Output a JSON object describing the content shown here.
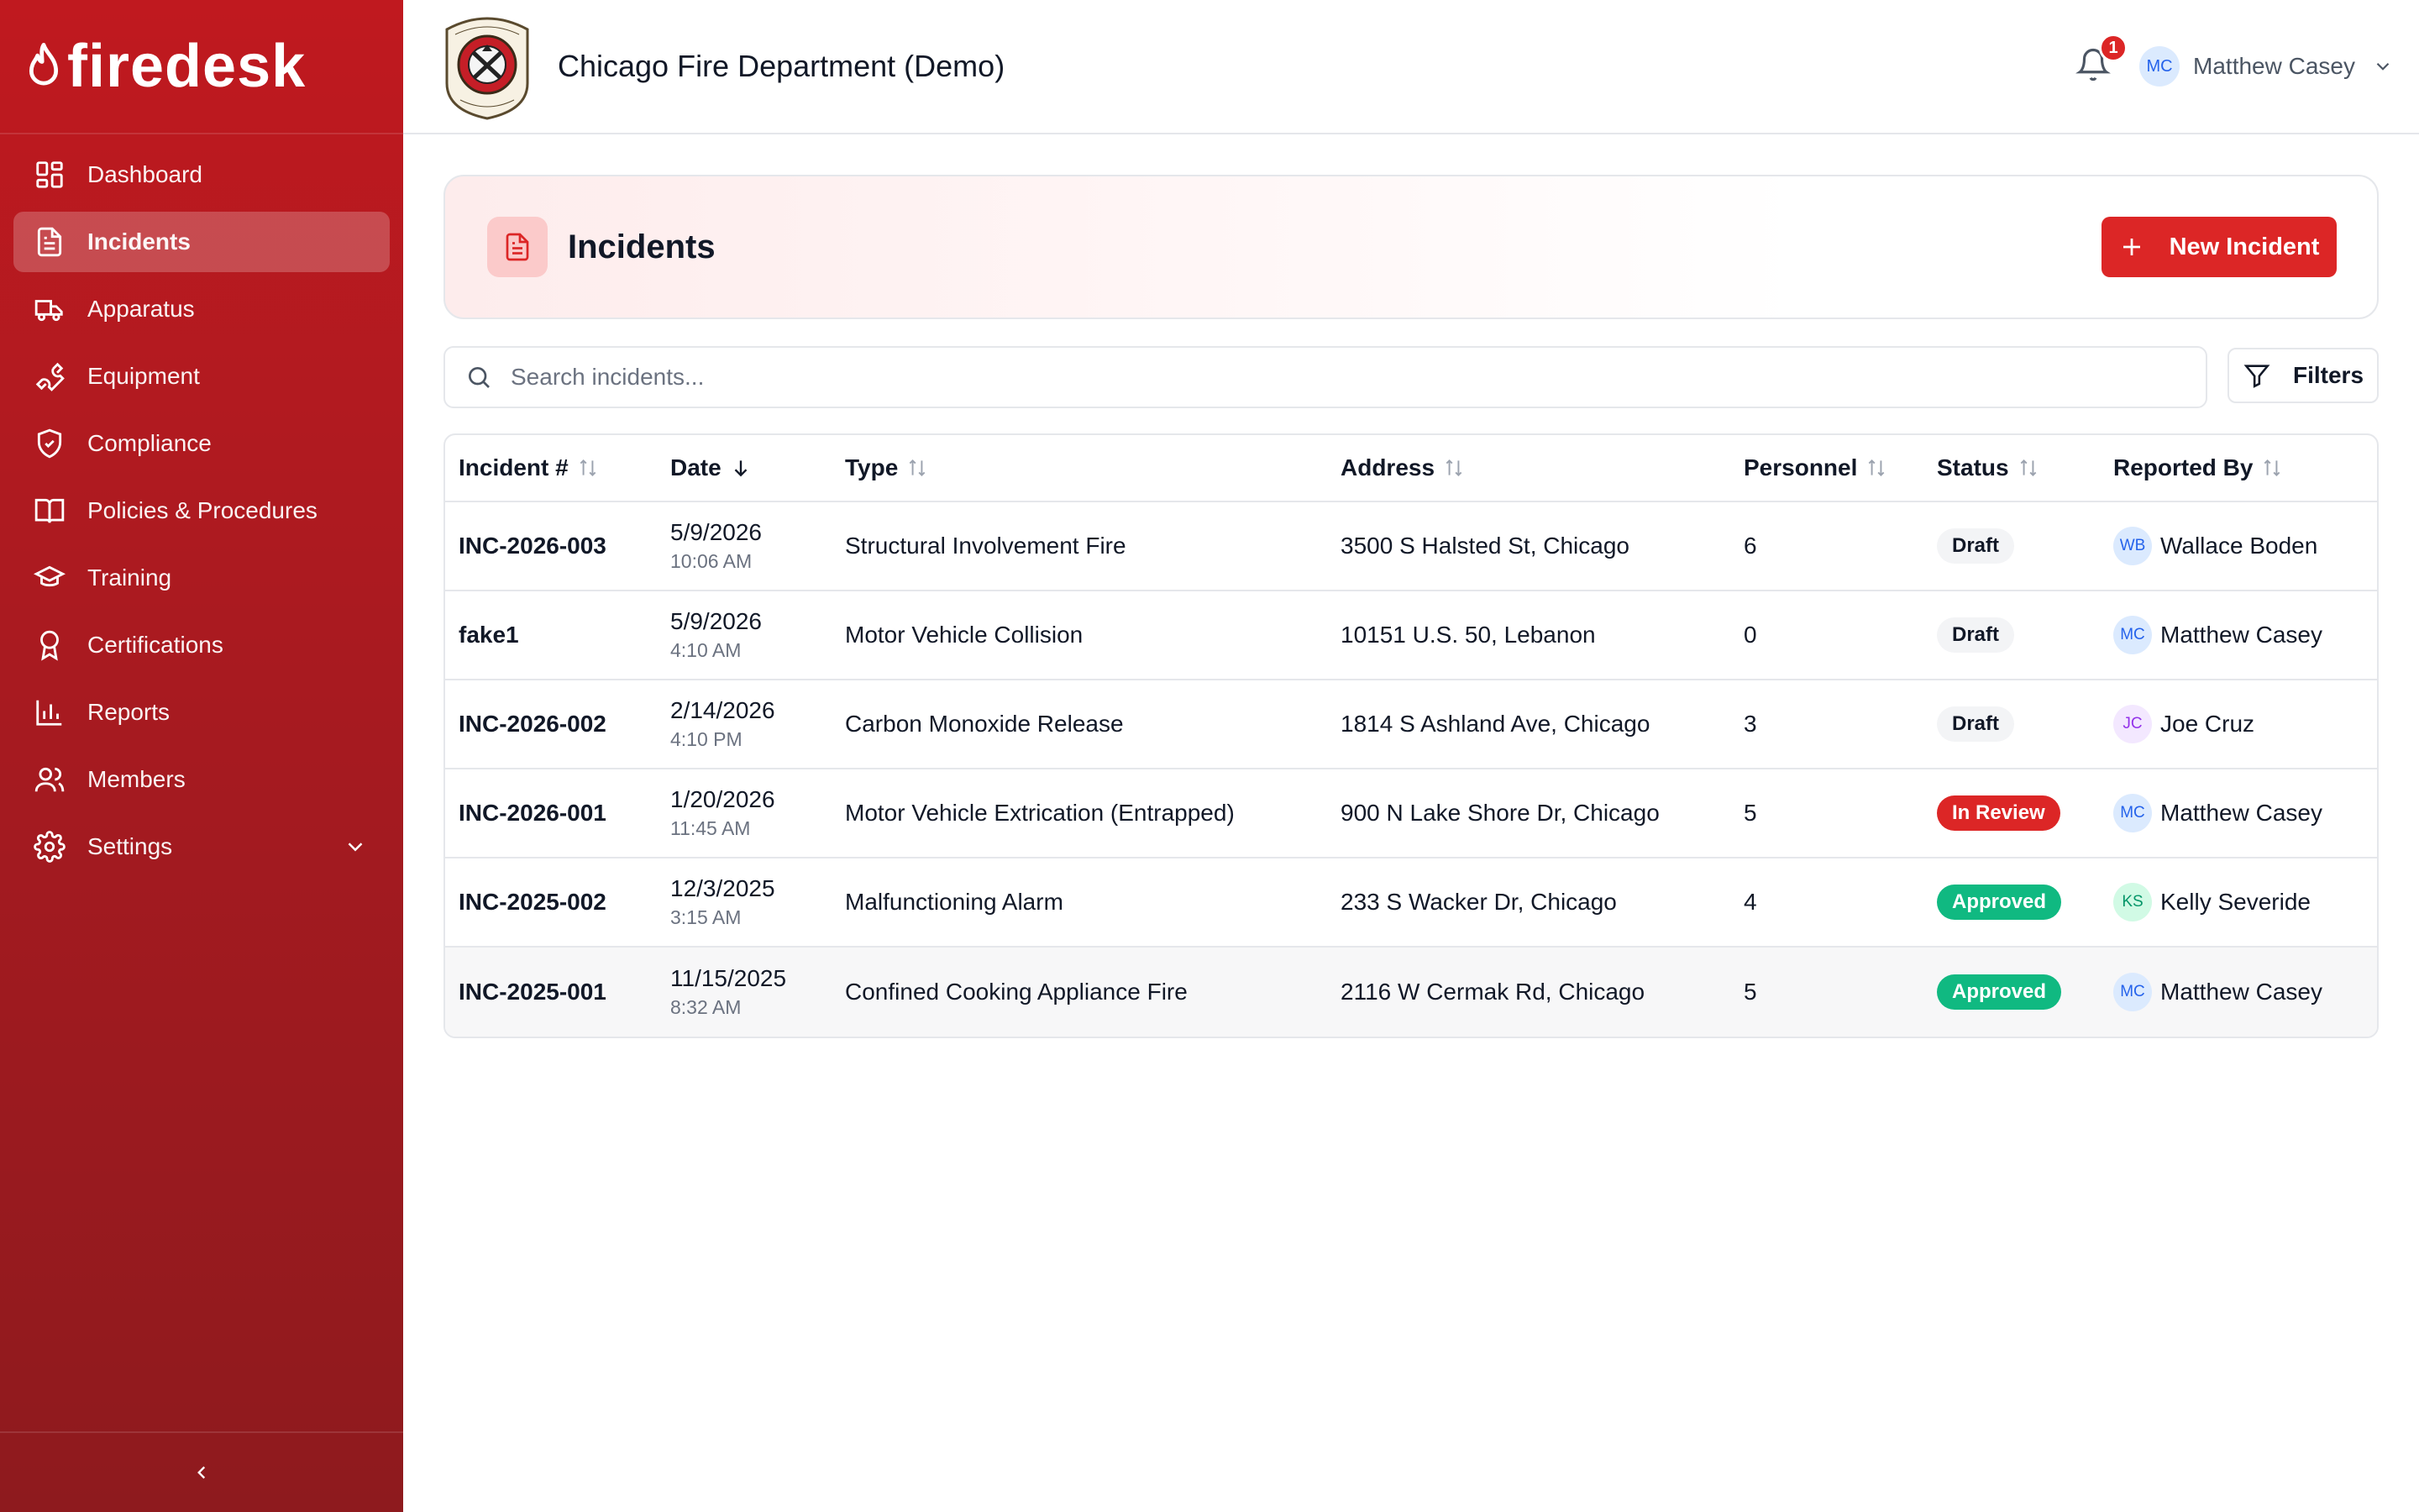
{
  "app": {
    "brand": "firedesk",
    "department": "Chicago Fire Department (Demo)",
    "logo_text_top": "LEBANON",
    "logo_text_bottom": "EMERALD MOUND"
  },
  "sidebar": {
    "items": [
      {
        "label": "Dashboard",
        "icon": "dashboard-icon"
      },
      {
        "label": "Incidents",
        "icon": "document-icon",
        "active": true
      },
      {
        "label": "Apparatus",
        "icon": "truck-icon"
      },
      {
        "label": "Equipment",
        "icon": "wrench-icon"
      },
      {
        "label": "Compliance",
        "icon": "shield-check-icon"
      },
      {
        "label": "Policies & Procedures",
        "icon": "book-icon"
      },
      {
        "label": "Training",
        "icon": "graduation-cap-icon"
      },
      {
        "label": "Certifications",
        "icon": "award-icon"
      },
      {
        "label": "Reports",
        "icon": "bar-chart-icon"
      },
      {
        "label": "Members",
        "icon": "users-icon"
      },
      {
        "label": "Settings",
        "icon": "gear-icon"
      }
    ]
  },
  "header": {
    "notification_count": "1",
    "user_initials": "MC",
    "user_name": "Matthew Casey"
  },
  "page": {
    "title": "Incidents",
    "new_button": "New Incident",
    "search_placeholder": "Search incidents...",
    "filters_button": "Filters"
  },
  "table": {
    "columns": [
      "Incident #",
      "Date",
      "Type",
      "Address",
      "Personnel",
      "Status",
      "Reported By"
    ],
    "rows": [
      {
        "id": "INC-2026-003",
        "date": "5/9/2026",
        "time": "10:06 AM",
        "type": "Structural Involvement Fire",
        "address": "3500 S Halsted St, Chicago",
        "personnel": "6",
        "status": "Draft",
        "reporter_initials": "WB",
        "reporter": "Wallace Boden"
      },
      {
        "id": "fake1",
        "date": "5/9/2026",
        "time": "4:10 AM",
        "type": "Motor Vehicle Collision",
        "address": "10151 U.S. 50, Lebanon",
        "personnel": "0",
        "status": "Draft",
        "reporter_initials": "MC",
        "reporter": "Matthew Casey"
      },
      {
        "id": "INC-2026-002",
        "date": "2/14/2026",
        "time": "4:10 PM",
        "type": "Carbon Monoxide Release",
        "address": "1814 S Ashland Ave, Chicago",
        "personnel": "3",
        "status": "Draft",
        "reporter_initials": "JC",
        "reporter": "Joe Cruz"
      },
      {
        "id": "INC-2026-001",
        "date": "1/20/2026",
        "time": "11:45 AM",
        "type": "Motor Vehicle Extrication (Entrapped)",
        "address": "900 N Lake Shore Dr, Chicago",
        "personnel": "5",
        "status": "In Review",
        "reporter_initials": "MC",
        "reporter": "Matthew Casey"
      },
      {
        "id": "INC-2025-002",
        "date": "12/3/2025",
        "time": "3:15 AM",
        "type": "Malfunctioning Alarm",
        "address": "233 S Wacker Dr, Chicago",
        "personnel": "4",
        "status": "Approved",
        "reporter_initials": "KS",
        "reporter": "Kelly Severide"
      },
      {
        "id": "INC-2025-001",
        "date": "11/15/2025",
        "time": "8:32 AM",
        "type": "Confined Cooking Appliance Fire",
        "address": "2116 W Cermak Rd, Chicago",
        "personnel": "5",
        "status": "Approved",
        "reporter_initials": "MC",
        "reporter": "Matthew Casey"
      }
    ]
  },
  "colors": {
    "brand_red": "#c0191f",
    "accent_red": "#dc2626",
    "approved_green": "#10b981",
    "draft_gray": "#f3f4f6"
  }
}
